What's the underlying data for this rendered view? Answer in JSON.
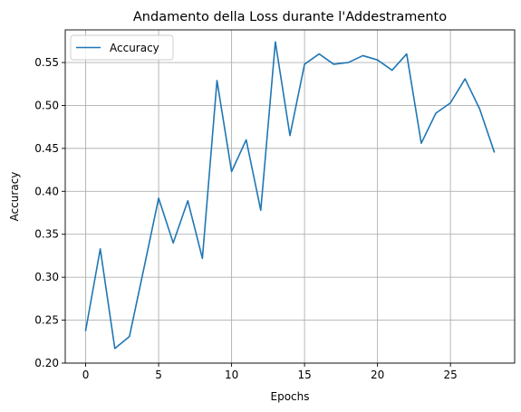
{
  "chart_data": {
    "type": "line",
    "title": "Andamento della Loss durante l'Addestramento",
    "xlabel": "Epochs",
    "ylabel": "Accuracy",
    "xlim": [
      -1.4,
      29.4
    ],
    "ylim": [
      0.2,
      0.588
    ],
    "xticks": [
      0,
      5,
      10,
      15,
      20,
      25
    ],
    "yticks": [
      0.2,
      0.25,
      0.3,
      0.35,
      0.4,
      0.45,
      0.5,
      0.55
    ],
    "xtick_labels": [
      "0",
      "5",
      "10",
      "15",
      "20",
      "25"
    ],
    "ytick_labels": [
      "0.20",
      "0.25",
      "0.30",
      "0.35",
      "0.40",
      "0.45",
      "0.50",
      "0.55"
    ],
    "grid": true,
    "legend_position": "top-left",
    "series": [
      {
        "name": "Accuracy",
        "color": "#1f77b4",
        "x": [
          0,
          1,
          2,
          3,
          4,
          5,
          6,
          7,
          8,
          9,
          10,
          11,
          12,
          13,
          14,
          15,
          16,
          17,
          18,
          19,
          20,
          21,
          22,
          23,
          24,
          25,
          26,
          27,
          28
        ],
        "values": [
          0.238,
          0.333,
          0.217,
          0.231,
          0.311,
          0.392,
          0.34,
          0.389,
          0.322,
          0.529,
          0.423,
          0.46,
          0.378,
          0.574,
          0.465,
          0.548,
          0.56,
          0.548,
          0.55,
          0.558,
          0.553,
          0.541,
          0.56,
          0.456,
          0.491,
          0.503,
          0.531,
          0.496,
          0.446
        ]
      }
    ]
  }
}
